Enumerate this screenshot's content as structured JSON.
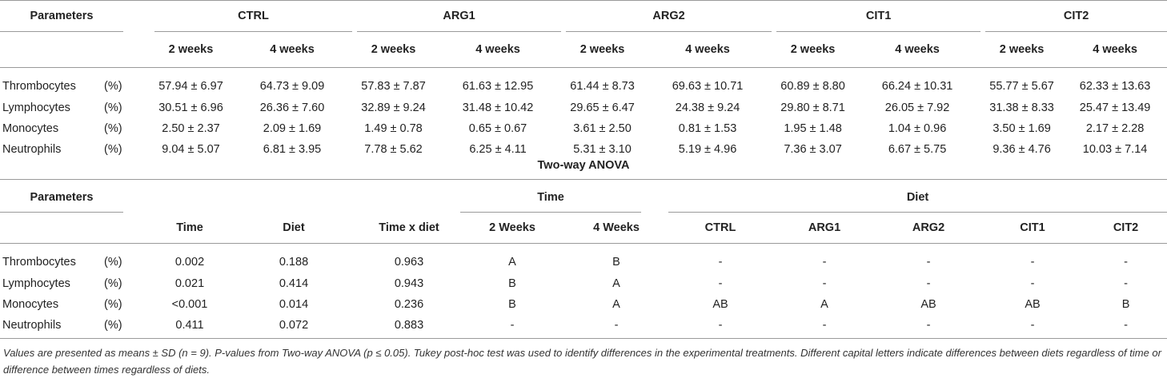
{
  "table1": {
    "header": {
      "parameters": "Parameters",
      "groups": [
        "CTRL",
        "ARG1",
        "ARG2",
        "CIT1",
        "CIT2"
      ],
      "subcols": [
        "2 weeks",
        "4 weeks"
      ]
    },
    "rows": [
      {
        "name": "Thrombocytes",
        "unit": "(%)",
        "values": [
          "57.94 ± 6.97",
          "64.73 ± 9.09",
          "57.83 ± 7.87",
          "61.63 ± 12.95",
          "61.44 ± 8.73",
          "69.63 ± 10.71",
          "60.89 ± 8.80",
          "66.24 ± 10.31",
          "55.77 ± 5.67",
          "62.33 ± 13.63"
        ]
      },
      {
        "name": "Lymphocytes",
        "unit": "(%)",
        "values": [
          "30.51 ± 6.96",
          "26.36 ± 7.60",
          "32.89 ± 9.24",
          "31.48 ± 10.42",
          "29.65 ± 6.47",
          "24.38 ± 9.24",
          "29.80 ± 8.71",
          "26.05 ± 7.92",
          "31.38 ± 8.33",
          "25.47 ± 13.49"
        ]
      },
      {
        "name": "Monocytes",
        "unit": "(%)",
        "values": [
          "2.50 ± 2.37",
          "2.09 ± 1.69",
          "1.49 ± 0.78",
          "0.65 ± 0.67",
          "3.61 ± 2.50",
          "0.81 ± 1.53",
          "1.95 ± 1.48",
          "1.04 ± 0.96",
          "3.50 ± 1.69",
          "2.17 ± 2.28"
        ]
      },
      {
        "name": "Neutrophils",
        "unit": "(%)",
        "values": [
          "9.04 ± 5.07",
          "6.81 ± 3.95",
          "7.78 ± 5.62",
          "6.25 ± 4.11",
          "5.31 ± 3.10",
          "5.19 ± 4.96",
          "7.36 ± 3.07",
          "6.67 ± 5.75",
          "9.36 ± 4.76",
          "10.03 ± 7.14"
        ]
      }
    ]
  },
  "anova_title": "Two-way ANOVA",
  "table2": {
    "header": {
      "parameters": "Parameters",
      "time_group": "Time",
      "diet_group": "Diet",
      "cols": [
        "Time",
        "Diet",
        "Time x diet",
        "2 Weeks",
        "4 Weeks",
        "CTRL",
        "ARG1",
        "ARG2",
        "CIT1",
        "CIT2"
      ]
    },
    "rows": [
      {
        "name": "Thrombocytes",
        "unit": "(%)",
        "values": [
          "0.002",
          "0.188",
          "0.963",
          "A",
          "B",
          "-",
          "-",
          "-",
          "-",
          "-"
        ]
      },
      {
        "name": "Lymphocytes",
        "unit": "(%)",
        "values": [
          "0.021",
          "0.414",
          "0.943",
          "B",
          "A",
          "-",
          "-",
          "-",
          "-",
          "-"
        ]
      },
      {
        "name": "Monocytes",
        "unit": "(%)",
        "values": [
          "<0.001",
          "0.014",
          "0.236",
          "B",
          "A",
          "AB",
          "A",
          "AB",
          "AB",
          "B"
        ]
      },
      {
        "name": "Neutrophils",
        "unit": "(%)",
        "values": [
          "0.411",
          "0.072",
          "0.883",
          "-",
          "-",
          "-",
          "-",
          "-",
          "-",
          "-"
        ]
      }
    ]
  },
  "footnote": "Values are presented as means ± SD (n = 9). P-values from Two-way ANOVA (p ≤ 0.05). Tukey post-hoc test was used to identify differences in the experimental treatments. Different capital letters indicate differences between diets regardless of time or difference between times regardless of diets."
}
